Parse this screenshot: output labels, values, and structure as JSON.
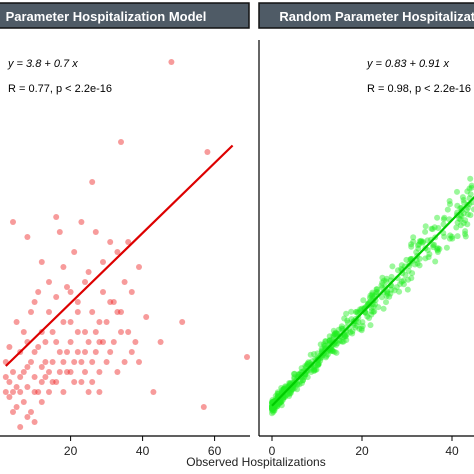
{
  "chart_data": [
    {
      "type": "scatter",
      "title": "Fixed Parameter Hospitalization Model",
      "strip_label_visible": "Parameter Hospitalization Model",
      "equation": "y = 3.8 + 0.7 x",
      "stats": "R = 0.77, p < 2.2e-16",
      "xlabel": "Observed Hospitalizations",
      "xticks": [
        "20",
        "40",
        "60"
      ],
      "point_color": "#ee2222",
      "line_color": "#dd0000",
      "fit": {
        "intercept": 3.8,
        "slope": 0.7
      },
      "x_range": [
        2,
        71
      ],
      "y_range": [
        -8,
        70
      ],
      "points": [
        [
          48,
          66
        ],
        [
          58,
          48
        ],
        [
          34,
          50
        ],
        [
          26,
          42
        ],
        [
          4,
          34
        ],
        [
          8,
          31
        ],
        [
          16,
          35
        ],
        [
          17,
          32
        ],
        [
          23,
          34
        ],
        [
          21,
          28
        ],
        [
          25,
          24
        ],
        [
          27,
          32
        ],
        [
          31,
          30
        ],
        [
          29,
          26
        ],
        [
          33,
          28
        ],
        [
          35,
          22
        ],
        [
          33,
          16
        ],
        [
          37,
          20
        ],
        [
          39,
          25
        ],
        [
          36,
          30
        ],
        [
          19,
          21
        ],
        [
          22,
          18
        ],
        [
          24,
          22
        ],
        [
          28,
          14
        ],
        [
          31,
          18
        ],
        [
          34,
          12
        ],
        [
          38,
          10
        ],
        [
          41,
          15
        ],
        [
          45,
          10
        ],
        [
          51,
          14
        ],
        [
          69,
          7
        ],
        [
          43,
          0
        ],
        [
          28,
          4
        ],
        [
          24,
          8
        ],
        [
          20,
          10
        ],
        [
          18,
          14
        ],
        [
          16,
          19
        ],
        [
          14,
          16
        ],
        [
          12,
          12
        ],
        [
          10,
          8
        ],
        [
          8,
          5
        ],
        [
          6,
          3
        ],
        [
          5,
          1
        ],
        [
          4,
          0
        ],
        [
          7,
          -2
        ],
        [
          9,
          -4
        ],
        [
          11,
          0
        ],
        [
          13,
          3
        ],
        [
          15,
          6
        ],
        [
          17,
          8
        ],
        [
          19,
          4
        ],
        [
          21,
          6
        ],
        [
          23,
          2
        ],
        [
          25,
          0
        ],
        [
          27,
          8
        ],
        [
          30,
          6
        ],
        [
          32,
          10
        ],
        [
          14,
          22
        ],
        [
          12,
          26
        ],
        [
          10,
          18
        ],
        [
          18,
          25
        ],
        [
          20,
          20
        ],
        [
          22,
          12
        ],
        [
          26,
          16
        ],
        [
          29,
          20
        ],
        [
          2,
          6
        ],
        [
          3,
          9
        ],
        [
          5,
          14
        ],
        [
          7,
          12
        ],
        [
          9,
          16
        ],
        [
          11,
          20
        ],
        [
          13,
          10
        ],
        [
          15,
          12
        ],
        [
          6,
          8
        ],
        [
          8,
          10
        ],
        [
          10,
          3
        ],
        [
          12,
          5
        ],
        [
          4,
          4
        ],
        [
          3,
          2
        ],
        [
          2,
          0
        ],
        [
          5,
          -3
        ],
        [
          7,
          4
        ],
        [
          9,
          6
        ],
        [
          11,
          9
        ],
        [
          13,
          6
        ],
        [
          15,
          2
        ],
        [
          17,
          4
        ],
        [
          19,
          8
        ],
        [
          21,
          2
        ],
        [
          23,
          6
        ],
        [
          25,
          10
        ],
        [
          27,
          12
        ],
        [
          29,
          10
        ],
        [
          31,
          8
        ],
        [
          33,
          4
        ],
        [
          35,
          6
        ],
        [
          37,
          8
        ],
        [
          39,
          6
        ],
        [
          16,
          10
        ],
        [
          18,
          6
        ],
        [
          20,
          14
        ],
        [
          22,
          16
        ],
        [
          24,
          12
        ],
        [
          26,
          6
        ],
        [
          28,
          10
        ],
        [
          30,
          14
        ],
        [
          32,
          18
        ],
        [
          34,
          16
        ],
        [
          36,
          12
        ],
        [
          14,
          0
        ],
        [
          12,
          -2
        ],
        [
          10,
          -6
        ],
        [
          8,
          -5
        ],
        [
          6,
          -7
        ],
        [
          4,
          -4
        ],
        [
          3,
          -1
        ],
        [
          2,
          3
        ],
        [
          6,
          0
        ],
        [
          8,
          1
        ],
        [
          10,
          0
        ],
        [
          12,
          2
        ],
        [
          14,
          4
        ],
        [
          16,
          2
        ],
        [
          18,
          0
        ],
        [
          20,
          4
        ],
        [
          22,
          8
        ],
        [
          24,
          4
        ],
        [
          26,
          2
        ],
        [
          28,
          0
        ],
        [
          57,
          -3
        ]
      ]
    },
    {
      "type": "scatter",
      "title": "Random Parameter Hospitalization Model",
      "strip_label_visible": "Random Parameter Hospitalization",
      "equation": "y = 0.83 + 0.91 x",
      "stats": "R = 0.98, p < 2.2e-16",
      "xlabel": "Observed Hospitalizations",
      "xticks": [
        "0",
        "20",
        "40"
      ],
      "point_color": "#22ee22",
      "line_color": "#00cc00",
      "fit": {
        "intercept": 0.83,
        "slope": 0.91
      },
      "x_range": [
        -3,
        46
      ],
      "y_range": [
        -2,
        55
      ]
    }
  ]
}
